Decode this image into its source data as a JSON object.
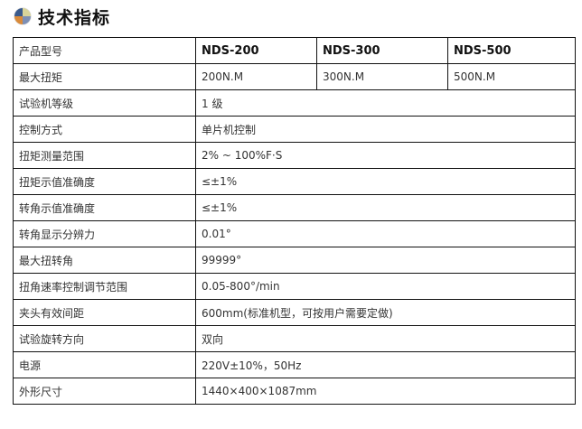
{
  "title": "技术指标",
  "icon": "quadrant-ball-icon",
  "header": {
    "label": "产品型号",
    "models": [
      "NDS-200",
      "NDS-300",
      "NDS-500"
    ]
  },
  "torque_row": {
    "label": "最大扭矩",
    "values": [
      "200N.M",
      "300N.M",
      "500N.M"
    ]
  },
  "rows": [
    {
      "label": "试验机等级",
      "value": "1 级"
    },
    {
      "label": "控制方式",
      "value": "单片机控制"
    },
    {
      "label": "扭矩测量范围",
      "value": "2% ~ 100%F·S"
    },
    {
      "label": "扭矩示值准确度",
      "value": "≤±1%"
    },
    {
      "label": "转角示值准确度",
      "value": "≤±1%"
    },
    {
      "label": "转角显示分辨力",
      "value": "0.01°"
    },
    {
      "label": "最大扭转角",
      "value": "99999°"
    },
    {
      "label": "扭角速率控制调节范围",
      "value": "0.05-800°/min"
    },
    {
      "label": "夹头有效间距",
      "value": "600mm(标准机型，可按用户需要定做)"
    },
    {
      "label": "试验旋转方向",
      "value": "双向"
    },
    {
      "label": "电源",
      "value": "220V±10%，50Hz"
    },
    {
      "label": "外形尺寸",
      "value": "1440×400×1087mm"
    }
  ]
}
